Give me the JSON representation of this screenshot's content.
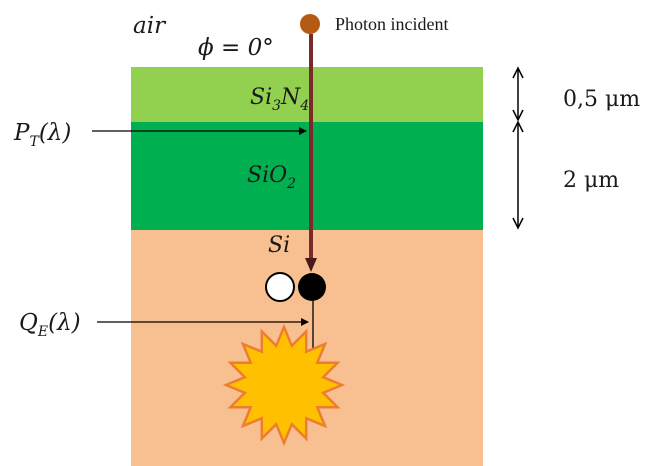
{
  "diagram": {
    "medium_label": "air",
    "angle_label": "ϕ = 0°",
    "photon_label": "Photon incident",
    "layers": [
      {
        "name_main": "Si",
        "name_sub1": "3",
        "name_mid": "N",
        "name_sub2": "4",
        "color": "#92d050"
      },
      {
        "name_main": "SiO",
        "name_sub1": "2",
        "color": "#00b050"
      },
      {
        "name_main": "Si",
        "color": "#f8c090"
      }
    ],
    "thickness_labels": [
      "0,5 μm",
      "2 μm"
    ],
    "pt_label": {
      "main": "P",
      "sub": "T",
      "arg": "(λ)"
    },
    "qe_label": {
      "main": "Q",
      "sub": "E",
      "arg": "(λ)"
    },
    "colors": {
      "photon": "#b55a12",
      "photon_path": "#7a2a2a",
      "electron": "#000000",
      "hole": "#ffffff",
      "star_fill": "#ffc000",
      "star_stroke": "#ed7d31"
    }
  }
}
